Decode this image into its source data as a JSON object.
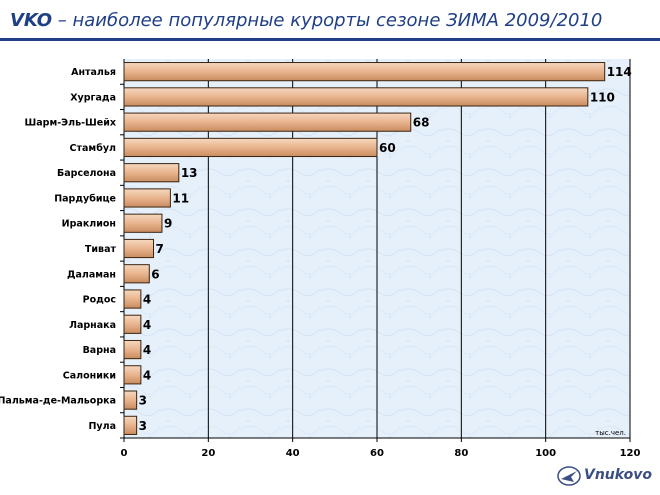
{
  "header": {
    "brand": "VKO",
    "title_rest": " – наиболее популярные курорты сезоне ЗИМА 2009/2010"
  },
  "logo": {
    "text": "Vnukovo"
  },
  "chart_data": {
    "type": "bar",
    "orientation": "horizontal",
    "title": "VKO – наиболее популярные курорты сезоне ЗИМА 2009/2010",
    "categories": [
      "Анталья",
      "Хургада",
      "Шарм-Эль-Шейх",
      "Стамбул",
      "Барселона",
      "Пардубице",
      "Ираклион",
      "Тиват",
      "Даламан",
      "Родос",
      "Ларнака",
      "Варна",
      "Салоники",
      "Пальма-де-Мальорка",
      "Пула"
    ],
    "values": [
      114,
      110,
      68,
      60,
      13,
      11,
      9,
      7,
      6,
      4,
      4,
      4,
      4,
      3,
      3
    ],
    "xlim": [
      0,
      120
    ],
    "xticks": [
      0,
      20,
      40,
      60,
      80,
      100,
      120
    ],
    "unit_label": "тыс.чел.",
    "grid": true,
    "colors": {
      "bar_fill": "#e8b48e",
      "bar_stroke": "#3a2410",
      "plot_bg": "#e6f0fb",
      "gridline": "#000000"
    }
  }
}
